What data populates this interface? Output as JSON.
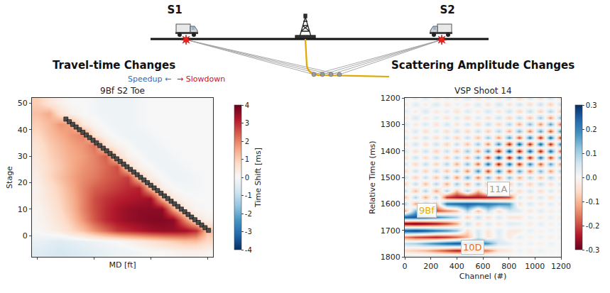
{
  "diagram": {
    "left_source": "S1",
    "right_source": "S2"
  },
  "chart_data": [
    {
      "type": "heatmap",
      "heading": "Travel-time Changes",
      "title": "9Bf S2 Toe",
      "annotations": [
        {
          "text": "Speedup ←",
          "color": "#2c6fbb"
        },
        {
          "text": "→ Slowdown",
          "color": "#c8102e"
        }
      ],
      "x_label": "MD [ft]",
      "y_label": "Stage",
      "tick_labels": "y",
      "color": "RdBu_r",
      "xlim": [
        -0.5,
        15.5
      ],
      "ylim": [
        -8,
        52
      ],
      "yticks": [
        0,
        10,
        20,
        30,
        40,
        50
      ],
      "x": [
        0,
        1,
        2,
        3,
        4,
        5,
        6,
        7,
        8,
        9,
        10,
        11,
        12,
        13,
        14,
        15
      ],
      "y": [
        -6,
        -2,
        2,
        6,
        10,
        14,
        18,
        22,
        26,
        30,
        34,
        38,
        42,
        46,
        50
      ],
      "z": [
        [
          -0.5,
          -0.6,
          -0.7,
          -0.6,
          -0.5,
          -0.4,
          -0.3,
          -0.2,
          -0.2,
          -0.1,
          0,
          0,
          0.1,
          0.2,
          0.2,
          0.1
        ],
        [
          -0.3,
          -0.4,
          -0.5,
          -0.4,
          -0.3,
          -0.2,
          -0.1,
          0,
          0.2,
          0.4,
          0.6,
          0.8,
          1.0,
          1.2,
          1.2,
          0.8
        ],
        [
          0,
          0.2,
          0.4,
          0.8,
          1.2,
          1.8,
          2.3,
          2.8,
          3.0,
          3.2,
          3.4,
          3.5,
          3.5,
          3.4,
          3.0,
          1.2
        ],
        [
          0.1,
          0.3,
          0.6,
          1.1,
          1.8,
          2.5,
          3.0,
          3.3,
          3.5,
          3.6,
          3.7,
          3.7,
          3.6,
          2.0,
          0.6,
          0.2
        ],
        [
          0.1,
          0.4,
          0.8,
          1.3,
          2.0,
          2.6,
          3.0,
          3.3,
          3.5,
          3.6,
          3.6,
          3.6,
          1.6,
          0.5,
          0.1,
          0
        ],
        [
          0.2,
          0.5,
          0.9,
          1.4,
          2.0,
          2.6,
          2.9,
          3.1,
          3.2,
          3.3,
          3.4,
          1.4,
          0.4,
          0.1,
          0,
          0
        ],
        [
          0.2,
          0.6,
          1.0,
          1.5,
          2.0,
          2.4,
          2.6,
          2.8,
          3.0,
          3.1,
          1.2,
          0.3,
          0,
          -0.1,
          -0.1,
          0
        ],
        [
          0.3,
          0.8,
          1.2,
          1.6,
          1.9,
          2.1,
          2.4,
          2.6,
          2.8,
          1.0,
          0.3,
          0,
          -0.2,
          -0.2,
          -0.1,
          0
        ],
        [
          0.4,
          0.8,
          1.1,
          1.5,
          1.8,
          2.0,
          2.3,
          2.6,
          0.8,
          0.2,
          0,
          -0.2,
          -0.2,
          -0.1,
          0,
          0
        ],
        [
          0.5,
          0.9,
          1.2,
          1.5,
          1.7,
          2.0,
          2.4,
          0.8,
          0.2,
          0,
          -0.2,
          -0.2,
          -0.1,
          0,
          0,
          0
        ],
        [
          0.6,
          1.0,
          1.3,
          1.6,
          1.8,
          2.2,
          0.6,
          0.2,
          0,
          -0.2,
          -0.2,
          -0.1,
          0,
          0,
          0,
          0
        ],
        [
          0.8,
          1.2,
          1.5,
          1.8,
          2.0,
          0.5,
          0.1,
          -0.1,
          -0.2,
          -0.2,
          -0.1,
          0,
          0,
          0,
          0,
          0
        ],
        [
          1.0,
          1.3,
          1.8,
          1.6,
          0.4,
          0.1,
          -0.1,
          -0.2,
          -0.2,
          -0.1,
          0,
          0,
          0,
          0,
          0,
          0
        ],
        [
          1.2,
          1.5,
          0.6,
          0.2,
          0,
          -0.1,
          -0.2,
          -0.2,
          -0.2,
          -0.1,
          0,
          0,
          0,
          0,
          0,
          0
        ],
        [
          1.0,
          0.5,
          0.2,
          0,
          0,
          -0.1,
          -0.2,
          -0.2,
          -0.2,
          -0.1,
          0,
          0,
          0,
          0,
          0,
          0
        ]
      ],
      "colorbar": {
        "title": "Time Shift [ms]",
        "range": [
          -4,
          4
        ],
        "ticks": [
          -4,
          -3,
          -2,
          -1,
          0,
          1,
          2,
          3,
          4
        ]
      },
      "markers": {
        "type": "scatter",
        "marker": "square",
        "color": "#4d4d4d",
        "x": [
          2.5,
          2.8,
          3.1,
          3.4,
          3.7,
          4.0,
          4.3,
          4.6,
          4.9,
          5.2,
          5.5,
          5.8,
          6.1,
          6.4,
          6.7,
          7.0,
          7.3,
          7.6,
          7.9,
          8.2,
          8.5,
          8.8,
          9.1,
          9.4,
          9.7,
          10.0,
          10.3,
          10.6,
          10.9,
          11.2,
          11.5,
          11.8,
          12.1,
          12.4,
          12.7,
          13.0,
          13.3,
          13.6,
          13.9,
          14.2,
          14.5,
          14.8,
          15.1
        ],
        "y": [
          44,
          43,
          42,
          41,
          40,
          39,
          38,
          37,
          36,
          35,
          34,
          33,
          32,
          31,
          30,
          29,
          28,
          27,
          26,
          25,
          24,
          23,
          22,
          21,
          20,
          19,
          18,
          17,
          16,
          15,
          14,
          13,
          12,
          11,
          10,
          9,
          8,
          7,
          6,
          5,
          4,
          3,
          2
        ]
      }
    },
    {
      "type": "heatmap",
      "heading": "Scattering Amplitude Changes",
      "title": "VSP Shoot 14",
      "x_label": "Channel (#)",
      "y_label": "Relative Time (ms)",
      "color": "RdBu",
      "xlim": [
        0,
        1200
      ],
      "xticks": [
        0,
        200,
        400,
        600,
        800,
        1000,
        1200
      ],
      "ylim": [
        1800,
        1200
      ],
      "yticks": [
        1200,
        1300,
        1400,
        1500,
        1600,
        1700,
        1800
      ],
      "x": [
        0,
        80,
        160,
        240,
        320,
        400,
        480,
        560,
        640,
        720,
        800,
        880,
        960,
        1040,
        1120,
        1200
      ],
      "y": [
        1200,
        1225,
        1250,
        1275,
        1300,
        1325,
        1350,
        1375,
        1400,
        1425,
        1450,
        1475,
        1500,
        1525,
        1550,
        1575,
        1600,
        1625,
        1650,
        1675,
        1700,
        1725,
        1750,
        1775,
        1800
      ],
      "z": [
        [
          0.03,
          -0.03,
          0.04,
          -0.04,
          0.03,
          -0.03,
          0.05,
          -0.05,
          0.04,
          -0.04,
          0.05,
          -0.06,
          0.05,
          -0.05,
          0.06,
          -0.06
        ],
        [
          -0.03,
          0.04,
          -0.03,
          0.05,
          -0.04,
          0.03,
          -0.04,
          0.05,
          -0.05,
          0.06,
          -0.05,
          0.06,
          -0.06,
          0.07,
          -0.08,
          0.08
        ],
        [
          0.04,
          -0.03,
          0.05,
          -0.04,
          0.04,
          -0.05,
          0.05,
          -0.04,
          0.06,
          -0.05,
          0.07,
          -0.07,
          0.08,
          -0.08,
          0.1,
          -0.1
        ],
        [
          -0.04,
          0.05,
          -0.04,
          0.04,
          -0.05,
          0.05,
          -0.06,
          0.05,
          -0.06,
          0.07,
          -0.08,
          0.09,
          -0.1,
          0.12,
          -0.14,
          0.15
        ],
        [
          0.05,
          -0.04,
          0.05,
          -0.05,
          0.06,
          -0.05,
          0.06,
          -0.07,
          0.08,
          -0.08,
          0.1,
          -0.12,
          0.14,
          -0.15,
          0.18,
          -0.2
        ],
        [
          -0.04,
          0.05,
          -0.06,
          0.05,
          -0.06,
          0.07,
          -0.07,
          0.08,
          -0.09,
          0.1,
          -0.12,
          0.15,
          -0.16,
          0.18,
          -0.2,
          0.22
        ],
        [
          0.05,
          -0.05,
          0.06,
          -0.06,
          0.07,
          -0.08,
          0.08,
          -0.1,
          0.12,
          -0.14,
          0.18,
          -0.2,
          0.22,
          -0.24,
          0.25,
          -0.25
        ],
        [
          -0.05,
          0.06,
          -0.06,
          0.07,
          -0.08,
          0.08,
          -0.1,
          0.12,
          -0.15,
          0.2,
          -0.25,
          0.26,
          -0.25,
          0.26,
          -0.25,
          0.24
        ],
        [
          0.06,
          -0.06,
          0.07,
          -0.08,
          0.08,
          -0.1,
          0.12,
          -0.14,
          0.2,
          -0.26,
          0.28,
          -0.27,
          0.26,
          -0.26,
          0.25,
          -0.22
        ],
        [
          -0.06,
          0.07,
          -0.07,
          0.08,
          -0.09,
          0.1,
          -0.12,
          0.16,
          -0.22,
          0.28,
          -0.27,
          0.26,
          -0.25,
          0.24,
          -0.22,
          0.2
        ],
        [
          0.06,
          -0.07,
          0.08,
          -0.08,
          0.1,
          -0.12,
          0.14,
          -0.18,
          0.24,
          -0.26,
          0.25,
          -0.24,
          0.22,
          -0.2,
          0.18,
          -0.16
        ],
        [
          -0.07,
          0.07,
          -0.08,
          0.09,
          -0.1,
          0.12,
          -0.15,
          0.2,
          -0.22,
          0.22,
          -0.2,
          0.18,
          -0.16,
          0.15,
          -0.14,
          0.12
        ],
        [
          0.07,
          -0.08,
          0.08,
          -0.1,
          0.12,
          -0.14,
          0.16,
          -0.16,
          0.16,
          -0.15,
          0.14,
          -0.12,
          0.1,
          -0.1,
          0.1,
          -0.08
        ],
        [
          -0.08,
          0.08,
          -0.1,
          0.1,
          -0.12,
          0.12,
          -0.12,
          0.12,
          -0.12,
          0.1,
          -0.1,
          0.08,
          -0.08,
          0.08,
          -0.06,
          0.06
        ],
        [
          0.08,
          -0.1,
          0.1,
          -0.12,
          0.1,
          -0.1,
          0.1,
          -0.1,
          0.08,
          -0.08,
          0.08,
          -0.06,
          0.06,
          -0.06,
          0.05,
          -0.05
        ],
        [
          -0.1,
          0.1,
          -0.12,
          0.1,
          -0.22,
          -0.25,
          -0.26,
          -0.25,
          -0.24,
          -0.22,
          -0.2,
          0.05,
          -0.05,
          0.05,
          -0.05,
          0.04
        ],
        [
          0.1,
          -0.12,
          0.12,
          -0.1,
          0.22,
          0.24,
          0.25,
          0.24,
          0.22,
          0.2,
          0.18,
          -0.05,
          0.05,
          -0.04,
          0.04,
          -0.04
        ],
        [
          -0.12,
          0.14,
          -0.12,
          -0.2,
          -0.15,
          -0.1,
          0.1,
          -0.1,
          0.08,
          -0.06,
          0.05,
          0.04,
          -0.04,
          0.04,
          -0.03,
          0.03
        ],
        [
          0.25,
          0.26,
          0.24,
          0.2,
          0.15,
          0.1,
          -0.08,
          0.08,
          -0.06,
          0.05,
          -0.04,
          -0.04,
          0.03,
          -0.03,
          0.03,
          -0.03
        ],
        [
          -0.28,
          -0.3,
          -0.28,
          -0.25,
          -0.2,
          -0.12,
          0.08,
          -0.06,
          0.05,
          -0.04,
          0.04,
          0.03,
          -0.03,
          0.03,
          -0.02,
          0.02
        ],
        [
          0.26,
          0.28,
          0.26,
          0.22,
          0.18,
          0.12,
          -0.06,
          0.05,
          -0.04,
          0.04,
          -0.03,
          -0.03,
          0.03,
          -0.02,
          0.02,
          -0.02
        ],
        [
          -0.15,
          -0.2,
          -0.22,
          -0.24,
          -0.22,
          -0.18,
          -0.1,
          0.05,
          -0.04,
          0.03,
          -0.03,
          0.03,
          -0.02,
          0.02,
          -0.02,
          0.02
        ],
        [
          0.08,
          0.1,
          0.15,
          0.2,
          0.24,
          0.26,
          0.25,
          0.22,
          0.18,
          0.05,
          0.03,
          -0.02,
          0.02,
          -0.02,
          0.02,
          -0.01
        ],
        [
          -0.06,
          -0.08,
          -0.1,
          -0.15,
          -0.2,
          -0.24,
          -0.22,
          -0.2,
          -0.15,
          -0.05,
          -0.03,
          0.02,
          -0.02,
          0.02,
          -0.01,
          0.01
        ],
        [
          0.05,
          0.05,
          0.06,
          0.08,
          0.1,
          0.12,
          0.12,
          0.1,
          0.08,
          0.04,
          0.02,
          -0.01,
          0.01,
          -0.01,
          0.01,
          -0.01
        ]
      ],
      "colorbar": {
        "range": [
          -0.3,
          0.3
        ],
        "ticks": [
          -0.3,
          -0.2,
          -0.1,
          {
            "value": 0,
            "label": "0.0"
          },
          0.1,
          0.2,
          0.3
        ]
      },
      "annotations": [
        {
          "text": "11A",
          "x": 720,
          "y": 1545,
          "color": "#9a9a9a"
        },
        {
          "text": "9Bf",
          "x": 170,
          "y": 1625,
          "color": "#e0b000"
        },
        {
          "text": "10D",
          "x": 520,
          "y": 1765,
          "color": "#e07020"
        }
      ]
    }
  ]
}
